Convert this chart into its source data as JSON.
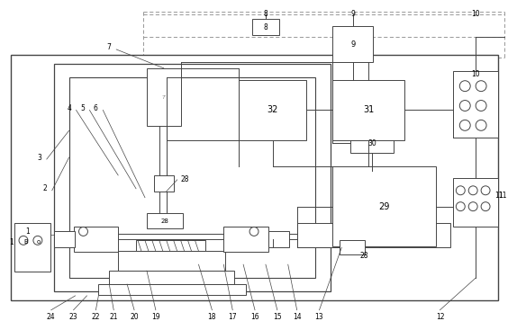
{
  "bg_color": "#ffffff",
  "lc": "#444444",
  "dc": "#888888",
  "figsize": [
    5.74,
    3.67
  ],
  "dpi": 100
}
